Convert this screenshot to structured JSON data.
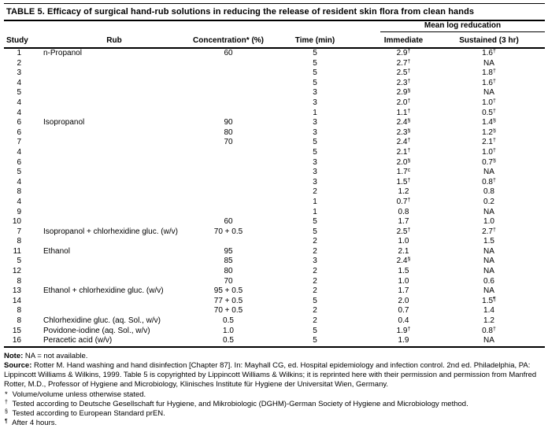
{
  "title": "TABLE 5. Efficacy of surgical hand-rub solutions in reducing the release of resident skin flora from clean hands",
  "table": {
    "group_header": "Mean log reducation",
    "columns": [
      "Study",
      "Rub",
      "Concentration* (%)",
      "Time (min)",
      "Immediate",
      "Sustained (3 hr)"
    ],
    "rows": [
      {
        "study": "1",
        "rub": "n-Propanol",
        "conc": "60",
        "time": "5",
        "imm": "2.9",
        "imm_sup": "†",
        "sus": "1.6",
        "sus_sup": "†"
      },
      {
        "study": "2",
        "rub": "",
        "conc": "",
        "time": "5",
        "imm": "2.7",
        "imm_sup": "†",
        "sus": "NA",
        "sus_sup": ""
      },
      {
        "study": "3",
        "rub": "",
        "conc": "",
        "time": "5",
        "imm": "2.5",
        "imm_sup": "†",
        "sus": "1.8",
        "sus_sup": "†"
      },
      {
        "study": "4",
        "rub": "",
        "conc": "",
        "time": "5",
        "imm": "2.3",
        "imm_sup": "†",
        "sus": "1.6",
        "sus_sup": "†"
      },
      {
        "study": "5",
        "rub": "",
        "conc": "",
        "time": "3",
        "imm": "2.9",
        "imm_sup": "§",
        "sus": "NA",
        "sus_sup": ""
      },
      {
        "study": "4",
        "rub": "",
        "conc": "",
        "time": "3",
        "imm": "2.0",
        "imm_sup": "†",
        "sus": "1.0",
        "sus_sup": "†"
      },
      {
        "study": "4",
        "rub": "",
        "conc": "",
        "time": "1",
        "imm": "1.1",
        "imm_sup": "†",
        "sus": "0.5",
        "sus_sup": "†"
      },
      {
        "study": "6",
        "rub": "Isopropanol",
        "conc": "90",
        "time": "3",
        "imm": "2.4",
        "imm_sup": "§",
        "sus": "1.4",
        "sus_sup": "§"
      },
      {
        "study": "6",
        "rub": "",
        "conc": "80",
        "time": "3",
        "imm": "2.3",
        "imm_sup": "§",
        "sus": "1.2",
        "sus_sup": "§"
      },
      {
        "study": "7",
        "rub": "",
        "conc": "70",
        "time": "5",
        "imm": "2.4",
        "imm_sup": "†",
        "sus": "2.1",
        "sus_sup": "†"
      },
      {
        "study": "4",
        "rub": "",
        "conc": "",
        "time": "5",
        "imm": "2.1",
        "imm_sup": "†",
        "sus": "1.0",
        "sus_sup": "†"
      },
      {
        "study": "6",
        "rub": "",
        "conc": "",
        "time": "3",
        "imm": "2.0",
        "imm_sup": "§",
        "sus": "0.7",
        "sus_sup": "§"
      },
      {
        "study": "5",
        "rub": "",
        "conc": "",
        "time": "3",
        "imm": "1.7",
        "imm_sup": "c",
        "sus": "NA",
        "sus_sup": ""
      },
      {
        "study": "4",
        "rub": "",
        "conc": "",
        "time": "3",
        "imm": "1.5",
        "imm_sup": "†",
        "sus": "0.8",
        "sus_sup": "†"
      },
      {
        "study": "8",
        "rub": "",
        "conc": "",
        "time": "2",
        "imm": "1.2",
        "imm_sup": "",
        "sus": "0.8",
        "sus_sup": ""
      },
      {
        "study": "4",
        "rub": "",
        "conc": "",
        "time": "1",
        "imm": "0.7",
        "imm_sup": "†",
        "sus": "0.2",
        "sus_sup": ""
      },
      {
        "study": "9",
        "rub": "",
        "conc": "",
        "time": "1",
        "imm": "0.8",
        "imm_sup": "",
        "sus": "NA",
        "sus_sup": ""
      },
      {
        "study": "10",
        "rub": "",
        "conc": "60",
        "time": "5",
        "imm": "1.7",
        "imm_sup": "",
        "sus": "1.0",
        "sus_sup": ""
      },
      {
        "study": "7",
        "rub": "Isopropanol + chlorhexidine gluc. (w/v)",
        "conc": "70 + 0.5",
        "time": "5",
        "imm": "2.5",
        "imm_sup": "†",
        "sus": "2.7",
        "sus_sup": "†"
      },
      {
        "study": "8",
        "rub": "",
        "conc": "",
        "time": "2",
        "imm": "1.0",
        "imm_sup": "",
        "sus": "1.5",
        "sus_sup": ""
      },
      {
        "study": "11",
        "rub": "Ethanol",
        "conc": "95",
        "time": "2",
        "imm": "2.1",
        "imm_sup": "",
        "sus": "NA",
        "sus_sup": ""
      },
      {
        "study": "5",
        "rub": "",
        "conc": "85",
        "time": "3",
        "imm": "2.4",
        "imm_sup": "§",
        "sus": "NA",
        "sus_sup": ""
      },
      {
        "study": "12",
        "rub": "",
        "conc": "80",
        "time": "2",
        "imm": "1.5",
        "imm_sup": "",
        "sus": "NA",
        "sus_sup": ""
      },
      {
        "study": "8",
        "rub": "",
        "conc": "70",
        "time": "2",
        "imm": "1.0",
        "imm_sup": "",
        "sus": "0.6",
        "sus_sup": ""
      },
      {
        "study": "13",
        "rub": "Ethanol + chlorhexidine gluc. (w/v)",
        "conc": "95 + 0.5",
        "time": "2",
        "imm": "1.7",
        "imm_sup": "",
        "sus": "NA",
        "sus_sup": ""
      },
      {
        "study": "14",
        "rub": "",
        "conc": "77 + 0.5",
        "time": "5",
        "imm": "2.0",
        "imm_sup": "",
        "sus": "1.5",
        "sus_sup": "¶"
      },
      {
        "study": "8",
        "rub": "",
        "conc": "70 + 0.5",
        "time": "2",
        "imm": "0.7",
        "imm_sup": "",
        "sus": "1.4",
        "sus_sup": ""
      },
      {
        "study": "8",
        "rub": "Chlorhexidine gluc. (aq. Sol., w/v)",
        "conc": "0.5",
        "time": "2",
        "imm": "0.4",
        "imm_sup": "",
        "sus": "1.2",
        "sus_sup": ""
      },
      {
        "study": "15",
        "rub": "Povidone-iodine (aq. Sol., w/v)",
        "conc": "1.0",
        "time": "5",
        "imm": "1.9",
        "imm_sup": "†",
        "sus": "0.8",
        "sus_sup": "†"
      },
      {
        "study": "16",
        "rub": "Peracetic acid (w/v)",
        "conc": "0.5",
        "time": "5",
        "imm": "1.9",
        "imm_sup": "",
        "sus": "NA",
        "sus_sup": ""
      }
    ]
  },
  "notes": {
    "note_label": "Note:",
    "note_text": " NA = not available.",
    "source_label": "Source:",
    "source_text": " Rotter M. Hand washing and hand disinfection [Chapter 87]. In: Mayhall CG, ed. Hospital epidemiology and infection control. 2nd ed. Philadelphia, PA: Lippincott Williams & Wilkins, 1999. Table 5 is copyrighted by Lippincott Williams & Wilkins; it is reprinted here with their permission and permission from Manfred Rotter, M.D., Professor of Hygiene and Microbiology, Klinisches Institute für Hygiene der Universitat Wien, Germany.",
    "footnotes": [
      {
        "sym": "*",
        "sup": false,
        "text": "Volume/volume unless otherwise stated."
      },
      {
        "sym": "†",
        "sup": true,
        "text": "Tested according to Deutsche Gesellschaft fur Hygiene, and Mikrobiologic (DGHM)-German Society of Hygiene and Microbiology method."
      },
      {
        "sym": "§",
        "sup": true,
        "text": "Tested according to European Standard prEN."
      },
      {
        "sym": "¶",
        "sup": true,
        "text": "After 4 hours."
      }
    ]
  }
}
